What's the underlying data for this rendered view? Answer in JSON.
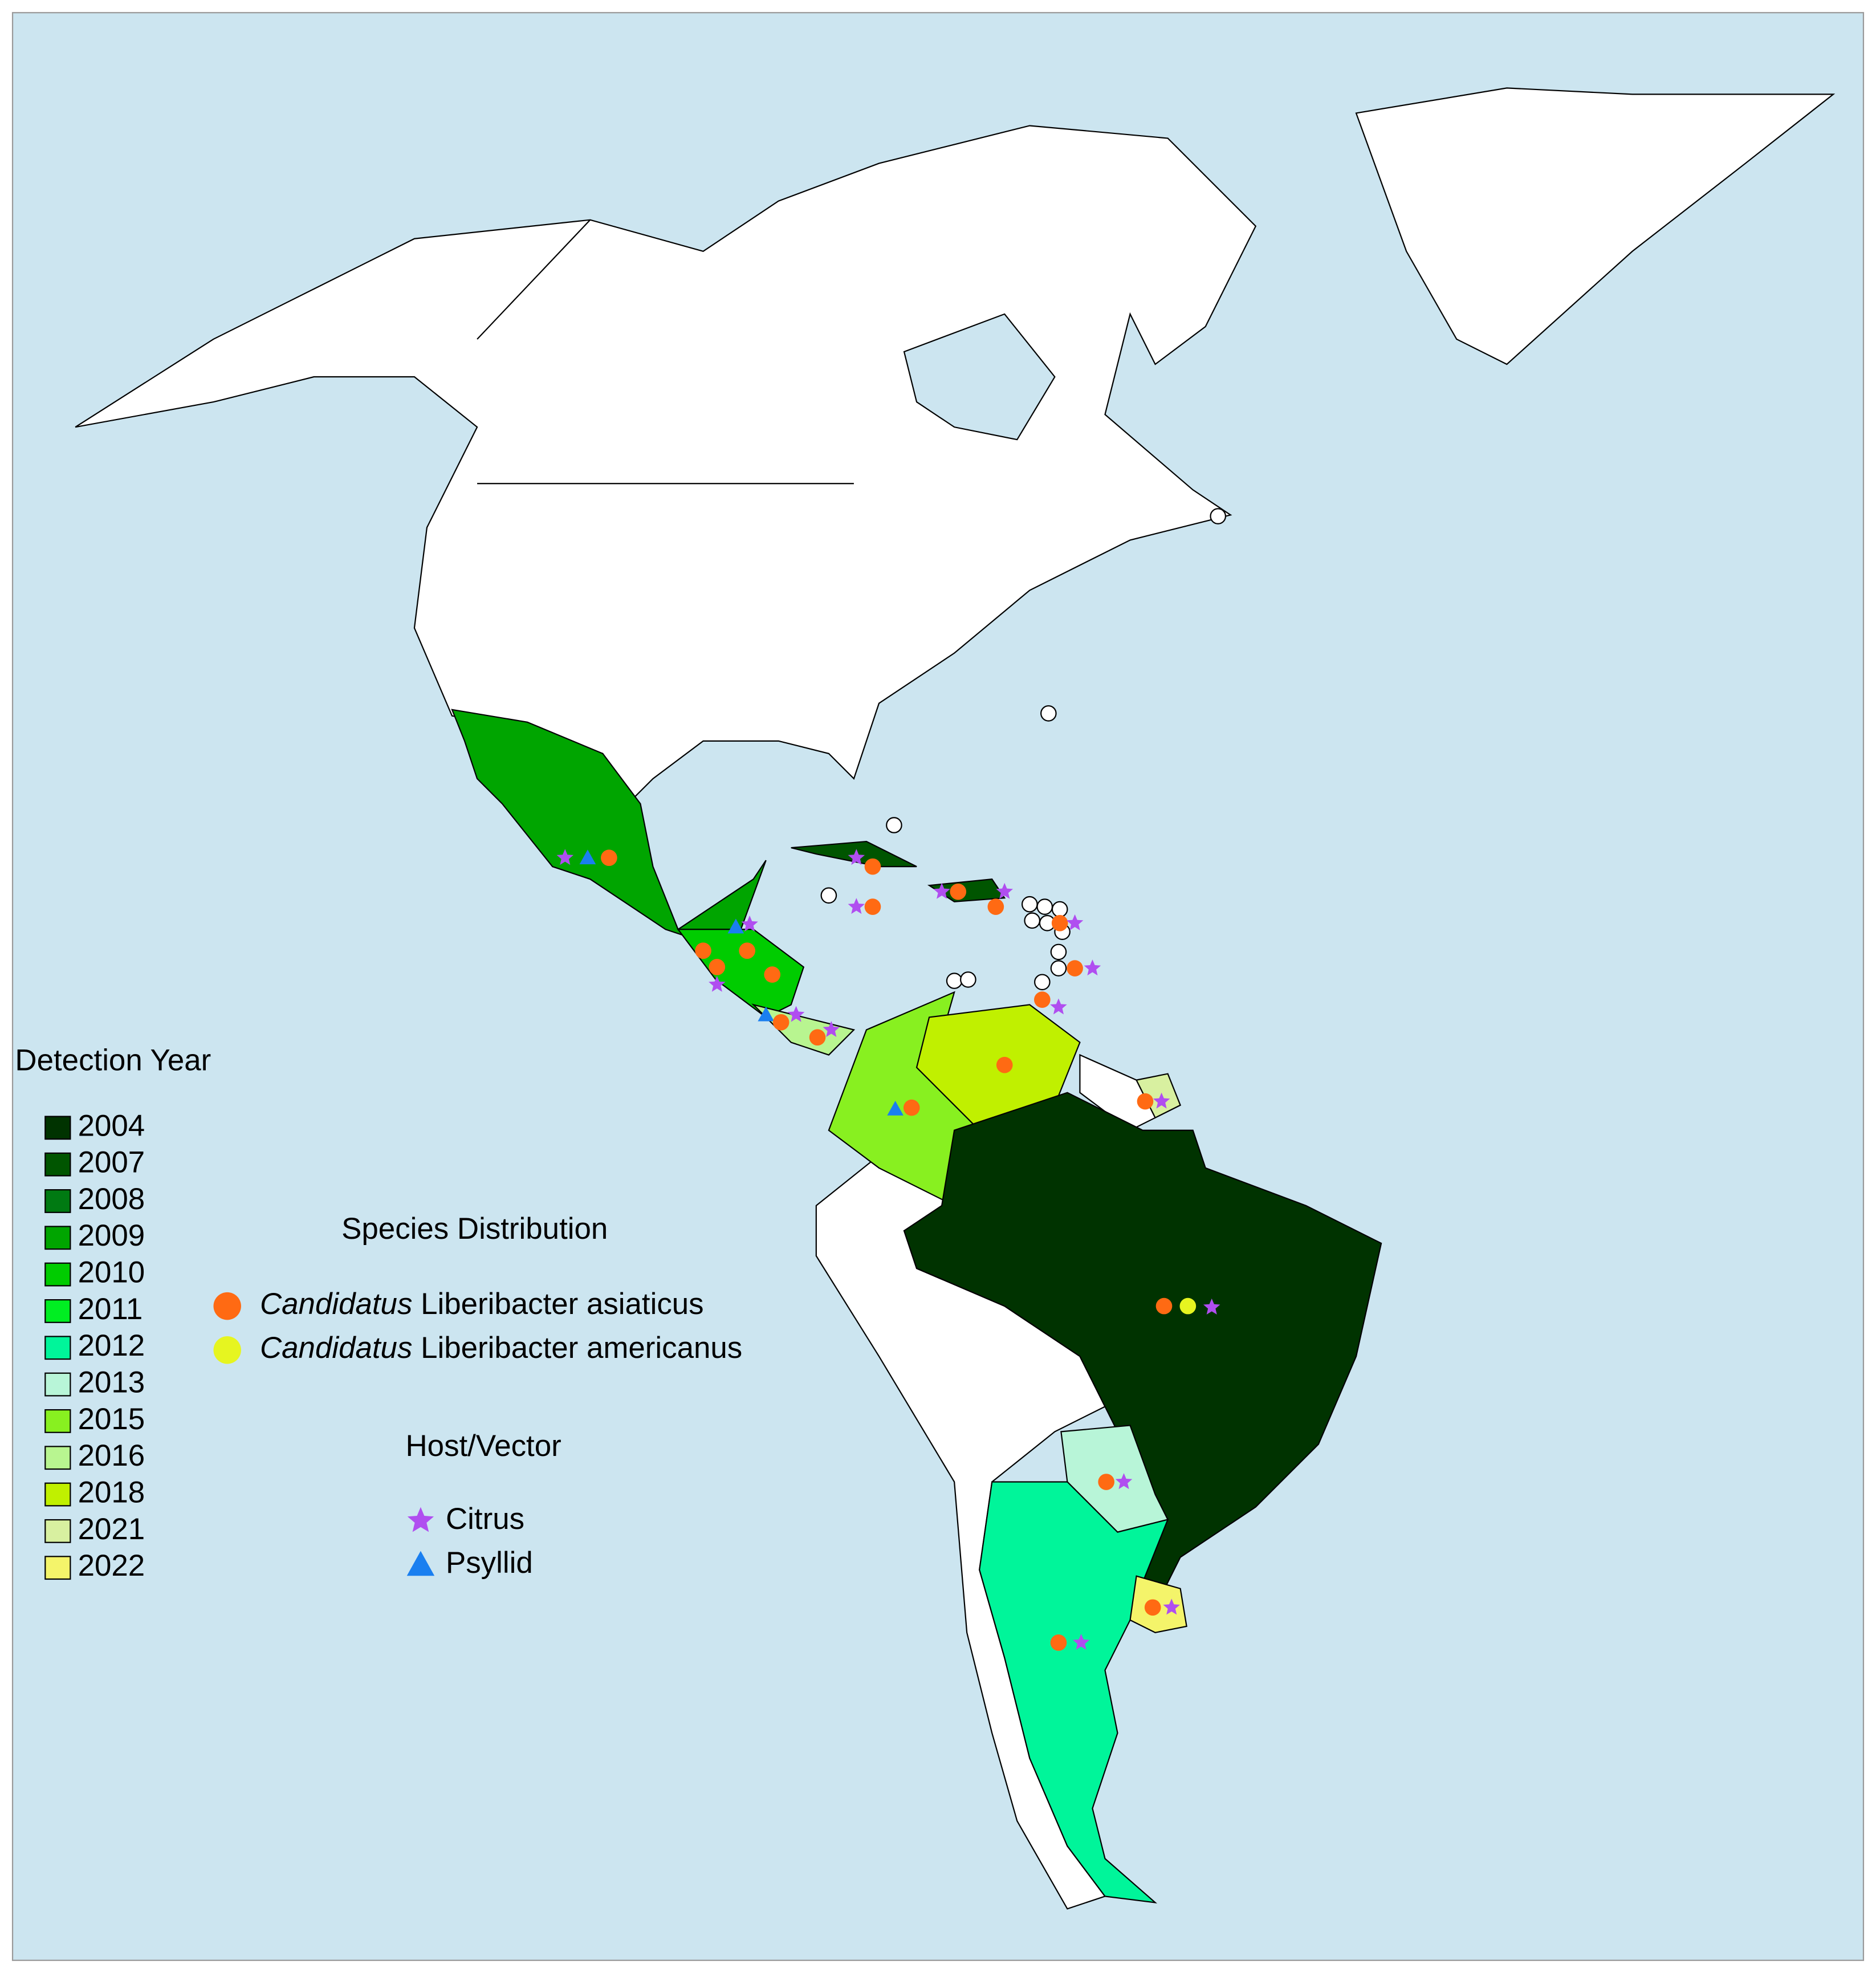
{
  "legend": {
    "title": "Detection Year",
    "items": [
      {
        "label": "2004",
        "color": "#003300"
      },
      {
        "label": "2007",
        "color": "#005500"
      },
      {
        "label": "2008",
        "color": "#007a12"
      },
      {
        "label": "2009",
        "color": "#00a500"
      },
      {
        "label": "2010",
        "color": "#00cc00"
      },
      {
        "label": "2011",
        "color": "#00ee22"
      },
      {
        "label": "2012",
        "color": "#00f59a"
      },
      {
        "label": "2013",
        "color": "#b8f5d8"
      },
      {
        "label": "2015",
        "color": "#88f020"
      },
      {
        "label": "2016",
        "color": "#b8f590"
      },
      {
        "label": "2018",
        "color": "#c0f000"
      },
      {
        "label": "2021",
        "color": "#d8f0a0"
      },
      {
        "label": "2022",
        "color": "#f4f46a"
      }
    ]
  },
  "species": {
    "title": "Species Distribution",
    "items": [
      {
        "italic": "Candidatus",
        "label": "Liberibacter asiaticus",
        "color": "#ff6a13"
      },
      {
        "italic": "Candidatus",
        "label": "Liberibacter americanus",
        "color": "#e6f520"
      }
    ]
  },
  "host_vector": {
    "title": "Host/Vector",
    "items": [
      {
        "label": "Citrus",
        "color": "#b04ef0"
      },
      {
        "label": "Psyllid",
        "color": "#1a7ff0"
      }
    ]
  }
}
